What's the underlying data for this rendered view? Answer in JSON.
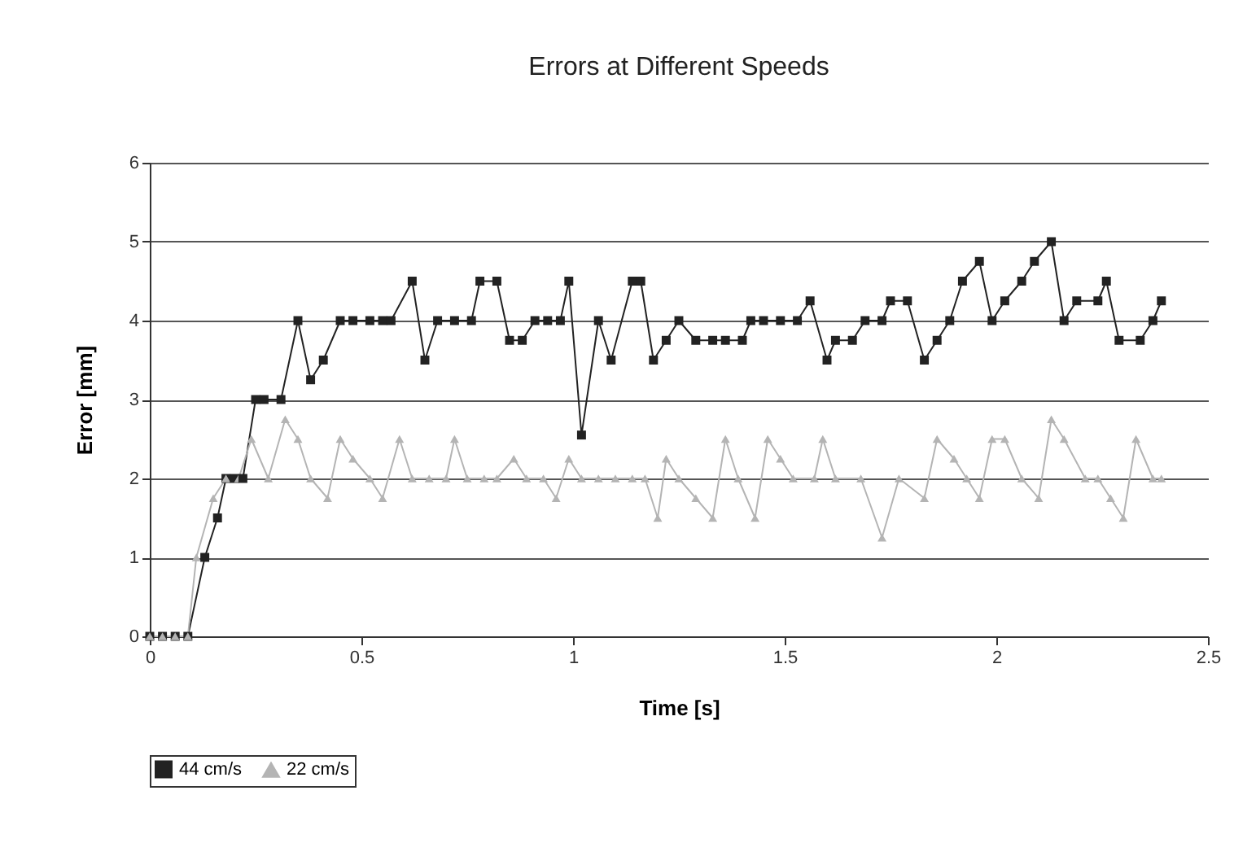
{
  "chart_data": {
    "type": "line",
    "title": "Errors at Different Speeds",
    "xlabel": "Time [s]",
    "ylabel": "Error [mm]",
    "xlim": [
      0,
      2.5
    ],
    "xticks": [
      0,
      0.5,
      1,
      1.5,
      2,
      2.5
    ],
    "ylim": [
      0,
      6
    ],
    "yticks": [
      0,
      1,
      2,
      3,
      4,
      5,
      6
    ],
    "grid": "y",
    "legend": "bottom",
    "series": [
      {
        "name": "44 cm/s",
        "color": "#222222",
        "marker": "square",
        "x": [
          0,
          0.03,
          0.06,
          0.09,
          0.13,
          0.16,
          0.18,
          0.2,
          0.22,
          0.25,
          0.27,
          0.31,
          0.35,
          0.38,
          0.41,
          0.45,
          0.48,
          0.52,
          0.55,
          0.57,
          0.62,
          0.65,
          0.68,
          0.72,
          0.76,
          0.78,
          0.82,
          0.85,
          0.88,
          0.91,
          0.94,
          0.97,
          0.99,
          1.02,
          1.06,
          1.09,
          1.14,
          1.16,
          1.19,
          1.22,
          1.25,
          1.29,
          1.33,
          1.36,
          1.4,
          1.42,
          1.45,
          1.49,
          1.53,
          1.56,
          1.6,
          1.62,
          1.66,
          1.69,
          1.73,
          1.75,
          1.79,
          1.83,
          1.86,
          1.89,
          1.92,
          1.96,
          1.99,
          2.02,
          2.06,
          2.09,
          2.13,
          2.16,
          2.19,
          2.24,
          2.26,
          2.29,
          2.34,
          2.37,
          2.39
        ],
        "values": [
          0,
          0,
          0,
          0,
          1,
          1.5,
          2,
          2,
          2,
          3,
          3,
          3,
          4,
          3.25,
          3.5,
          4,
          4,
          4,
          4,
          4,
          4.5,
          3.5,
          4,
          4,
          4,
          4.5,
          4.5,
          3.75,
          3.75,
          4,
          4,
          4,
          4.5,
          2.55,
          4,
          3.5,
          4.5,
          4.5,
          3.5,
          3.75,
          4,
          3.75,
          3.75,
          3.75,
          3.75,
          4,
          4,
          4,
          4,
          4.25,
          3.5,
          3.75,
          3.75,
          4,
          4,
          4.25,
          4.25,
          3.5,
          3.75,
          4,
          4.5,
          4.75,
          4,
          4.25,
          4.5,
          4.75,
          5,
          4,
          4.25,
          4.25,
          4.5,
          3.75,
          3.75,
          4,
          4.25
        ]
      },
      {
        "name": "22 cm/s",
        "color": "#b4b4b4",
        "marker": "triangle",
        "x": [
          0,
          0.03,
          0.06,
          0.09,
          0.11,
          0.15,
          0.18,
          0.21,
          0.24,
          0.28,
          0.32,
          0.35,
          0.38,
          0.42,
          0.45,
          0.48,
          0.52,
          0.55,
          0.59,
          0.62,
          0.66,
          0.7,
          0.72,
          0.75,
          0.79,
          0.82,
          0.86,
          0.89,
          0.93,
          0.96,
          0.99,
          1.02,
          1.06,
          1.1,
          1.14,
          1.17,
          1.2,
          1.22,
          1.25,
          1.29,
          1.33,
          1.36,
          1.39,
          1.43,
          1.46,
          1.49,
          1.52,
          1.57,
          1.59,
          1.62,
          1.68,
          1.73,
          1.77,
          1.83,
          1.86,
          1.9,
          1.93,
          1.96,
          1.99,
          2.02,
          2.06,
          2.1,
          2.13,
          2.16,
          2.21,
          2.24,
          2.27,
          2.3,
          2.33,
          2.37,
          2.39
        ],
        "values": [
          0,
          0,
          0,
          0,
          1,
          1.75,
          2,
          2,
          2.5,
          2,
          2.75,
          2.5,
          2,
          1.75,
          2.5,
          2.25,
          2,
          1.75,
          2.5,
          2,
          2,
          2,
          2.5,
          2,
          2,
          2,
          2.25,
          2,
          2,
          1.75,
          2.25,
          2,
          2,
          2,
          2,
          2,
          1.5,
          2.25,
          2,
          1.75,
          1.5,
          2.5,
          2,
          1.5,
          2.5,
          2.25,
          2,
          2,
          2.5,
          2,
          2,
          1.25,
          2,
          1.75,
          2.5,
          2.25,
          2,
          1.75,
          2.5,
          2.5,
          2,
          1.75,
          2.75,
          2.5,
          2,
          2,
          1.75,
          1.5,
          2.5,
          2,
          2
        ]
      }
    ]
  }
}
